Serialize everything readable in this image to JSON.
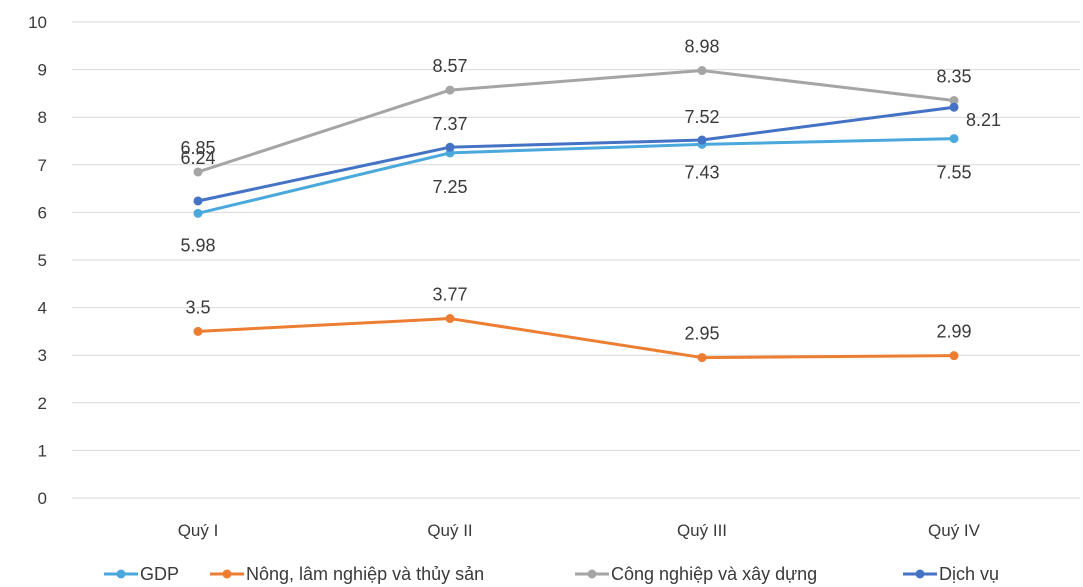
{
  "chart_data": {
    "type": "line",
    "categories": [
      "Quý I",
      "Quý II",
      "Quý III",
      "Quý IV"
    ],
    "ylim": [
      0,
      10
    ],
    "yticks": [
      "0",
      "1",
      "2",
      "3",
      "4",
      "5",
      "6",
      "7",
      "8",
      "9",
      "10"
    ],
    "grid": true,
    "legend_position": "bottom",
    "series": [
      {
        "name": "GDP",
        "color": "#4aa8dc",
        "values": [
          5.98,
          7.25,
          7.43,
          7.55
        ],
        "labels": [
          "5.98",
          "7.25",
          "7.43",
          "7.55"
        ]
      },
      {
        "name": "Nông, lâm nghiệp và thủy sản",
        "color": "#ed7d31",
        "values": [
          3.5,
          3.77,
          2.95,
          2.99
        ],
        "labels": [
          "3.5",
          "3.77",
          "2.95",
          "2.99"
        ]
      },
      {
        "name": "Công nghiệp và xây dựng",
        "color": "#a5a5a5",
        "values": [
          6.85,
          8.57,
          8.98,
          8.35
        ],
        "labels": [
          "6.85",
          "8.57",
          "8.98",
          "8.35"
        ]
      },
      {
        "name": "Dịch vụ",
        "color": "#4472c4",
        "values": [
          6.24,
          7.37,
          7.52,
          8.21
        ],
        "labels": [
          "6.24",
          "7.37",
          "7.52",
          "8.21"
        ]
      }
    ]
  }
}
